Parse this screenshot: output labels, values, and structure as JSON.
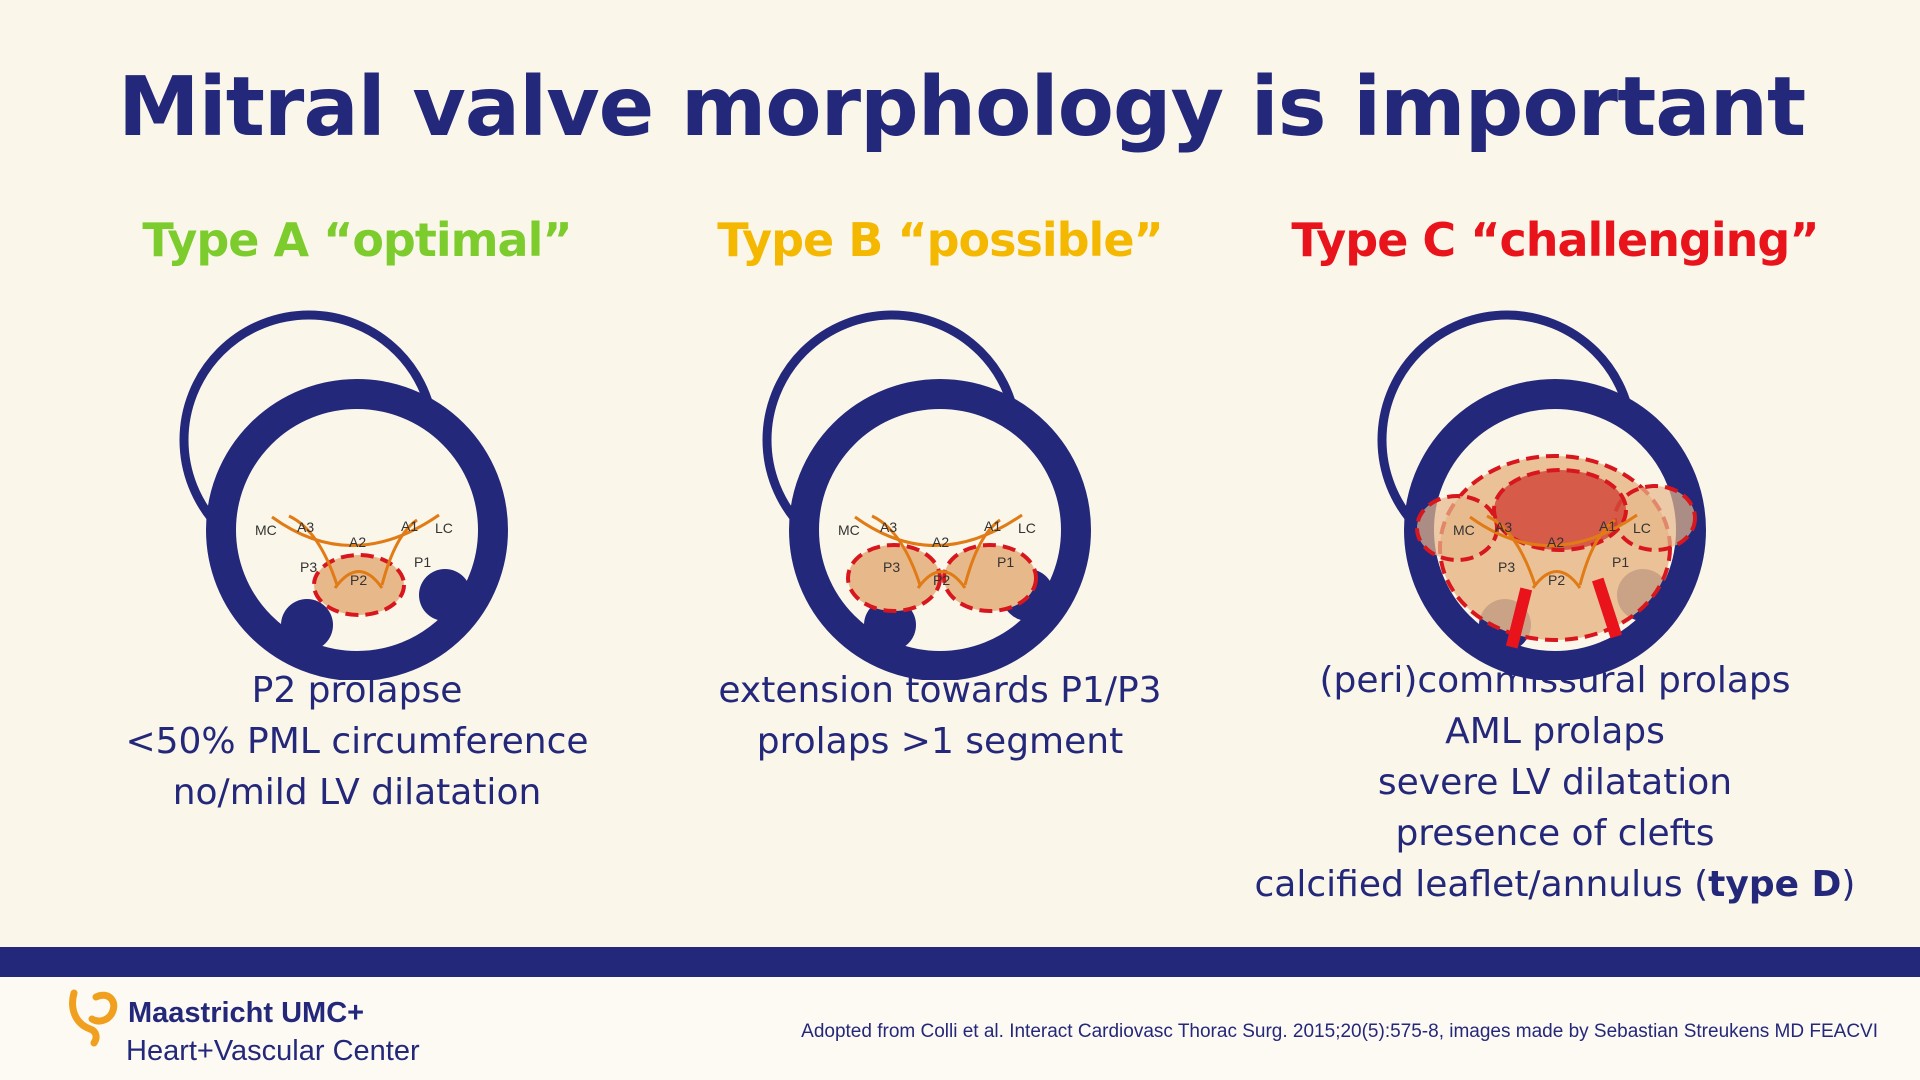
{
  "slide": {
    "title": "Mitral valve morphology is important"
  },
  "types": [
    {
      "heading": "Type A “optimal”",
      "color": "#7dcc2e",
      "criteria": [
        "P2 prolapse",
        "<50% PML circumference",
        "no/mild LV dilatation"
      ]
    },
    {
      "heading": "Type B “possible”",
      "color": "#f4b800",
      "criteria": [
        "extension towards P1/P3",
        "prolaps >1 segment"
      ]
    },
    {
      "heading": "Type C “challenging”",
      "color": "#e8131b",
      "criteria": [
        "(peri)commissural prolaps",
        "AML prolaps",
        "severe LV dilatation",
        "presence of clefts"
      ],
      "last_line_prefix": "calcified leaflet/annulus (",
      "last_line_bold": "type D",
      "last_line_suffix": ")"
    }
  ],
  "valve_labels": {
    "mc": "MC",
    "a3": "A3",
    "a2": "A2",
    "a1": "A1",
    "lc": "LC",
    "p3": "P3",
    "p2": "P2",
    "p1": "P1"
  },
  "colors": {
    "navy": "#24287a",
    "leaflet": "#e07b16",
    "prolapse_fill": "#e7b88a",
    "prolapse_dash": "#d8161e",
    "aml_fill": "#d2493a",
    "background": "#fbf6ea"
  },
  "footer": {
    "brand_name": "Maastricht UMC+",
    "brand_sub": "Heart+Vascular Center",
    "citation": "Adopted from Colli et al. Interact Cardiovasc Thorac Surg. 2015;20(5):575-8, images made by Sebastian Streukens MD FEACVI"
  }
}
